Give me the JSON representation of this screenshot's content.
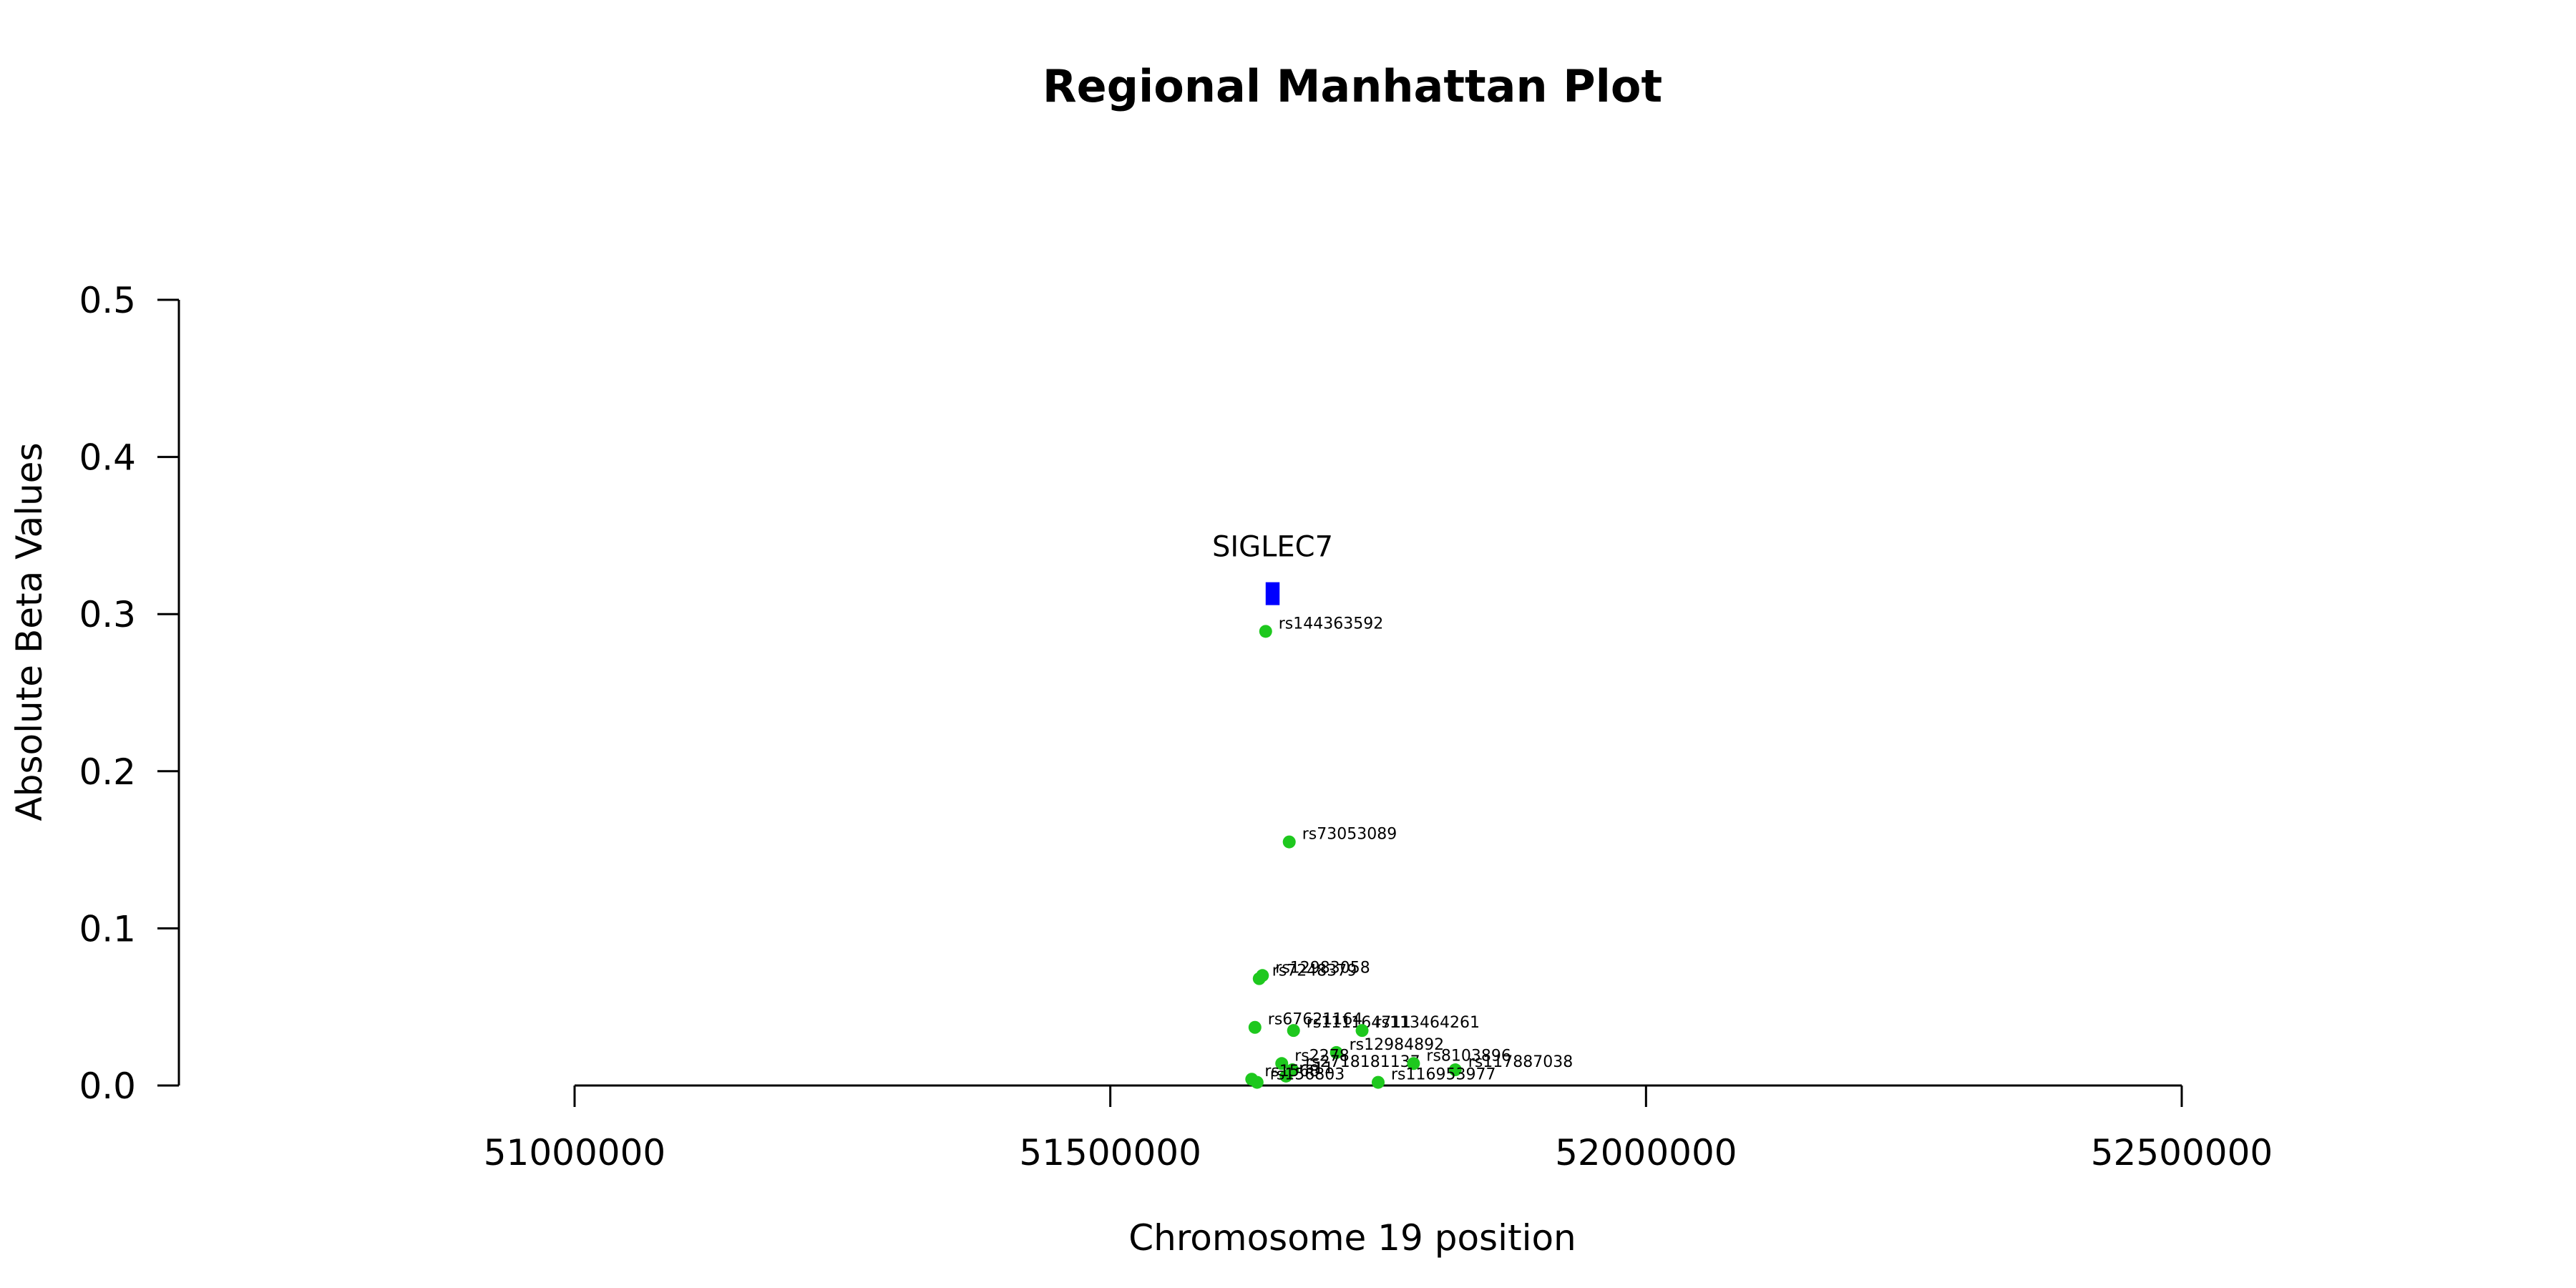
{
  "chart_data": {
    "type": "scatter",
    "title": "Regional Manhattan Plot",
    "xlabel": "Chromosome 19 position",
    "ylabel": "Absolute Beta Values",
    "xlim": [
      51000000,
      52500000
    ],
    "ylim": [
      0,
      0.5
    ],
    "x_ticks": [
      51000000,
      51500000,
      52000000,
      52500000
    ],
    "y_ticks": [
      0.0,
      0.1,
      0.2,
      0.3,
      0.4,
      0.5
    ],
    "x_tick_labels": [
      "51000000",
      "51500000",
      "52000000",
      "52500000"
    ],
    "y_tick_labels": [
      "0.0",
      "0.1",
      "0.2",
      "0.3",
      "0.4",
      "0.5"
    ],
    "grid": false,
    "point_color": "#1ec81e",
    "gene_color": "#0000ff",
    "genes": [
      {
        "name": "SIGLEC7",
        "start": 51645000,
        "end": 51658000,
        "y": 0.313
      }
    ],
    "points": [
      {
        "label": "rs144363592",
        "x": 51645000,
        "y": 0.289
      },
      {
        "label": "rs73053089",
        "x": 51667000,
        "y": 0.155
      },
      {
        "label": "rs12983058",
        "x": 51642000,
        "y": 0.07
      },
      {
        "label": "rs7248379",
        "x": 51639000,
        "y": 0.068
      },
      {
        "label": "rs67621164",
        "x": 51635000,
        "y": 0.037
      },
      {
        "label": "rs111164711",
        "x": 51671000,
        "y": 0.035
      },
      {
        "label": "rs113464261",
        "x": 51735000,
        "y": 0.035
      },
      {
        "label": "rs12984892",
        "x": 51711000,
        "y": 0.021
      },
      {
        "label": "rs2278",
        "x": 51660000,
        "y": 0.014
      },
      {
        "label": "rs2718181137",
        "x": 51670000,
        "y": 0.01
      },
      {
        "label": "rs8103896",
        "x": 51783000,
        "y": 0.014
      },
      {
        "label": "rs117887038",
        "x": 51822000,
        "y": 0.01
      },
      {
        "label": "rs11",
        "x": 51664000,
        "y": 0.006
      },
      {
        "label": "rs1568",
        "x": 51632000,
        "y": 0.004
      },
      {
        "label": "rs156803",
        "x": 51637000,
        "y": 0.002
      },
      {
        "label": "rs116953977",
        "x": 51750000,
        "y": 0.002
      }
    ]
  }
}
